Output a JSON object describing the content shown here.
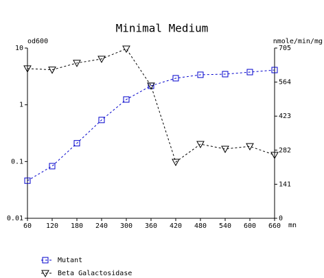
{
  "chart_data": {
    "type": "line",
    "title": "Minimal Medium",
    "y_label": "od600",
    "y2_label": "nmole/min/mg",
    "x_label": "mn",
    "x": [
      60,
      120,
      180,
      240,
      300,
      360,
      420,
      480,
      540,
      600,
      660
    ],
    "xlim": [
      60,
      660
    ],
    "xticks": [
      60,
      120,
      180,
      240,
      300,
      360,
      420,
      480,
      540,
      600,
      660
    ],
    "ylim": [
      0.01,
      10
    ],
    "yticks": [
      0.01,
      0.1,
      1,
      10
    ],
    "ylog": true,
    "y2lim": [
      0,
      705
    ],
    "y2ticks": [
      0,
      141,
      282,
      423,
      564,
      705
    ],
    "series": [
      {
        "name": "Mutant",
        "color": "#0000cc",
        "marker": "square",
        "axis": "y",
        "values": [
          0.046,
          0.083,
          0.21,
          0.54,
          1.24,
          2.16,
          2.94,
          3.38,
          3.47,
          3.77,
          4.1
        ]
      },
      {
        "name": "Beta Galactosidase",
        "color": "#000000",
        "marker": "triangle-down",
        "axis": "y2",
        "values": [
          620,
          615,
          643,
          660,
          702,
          549,
          233,
          307,
          287,
          298,
          262
        ]
      }
    ]
  }
}
